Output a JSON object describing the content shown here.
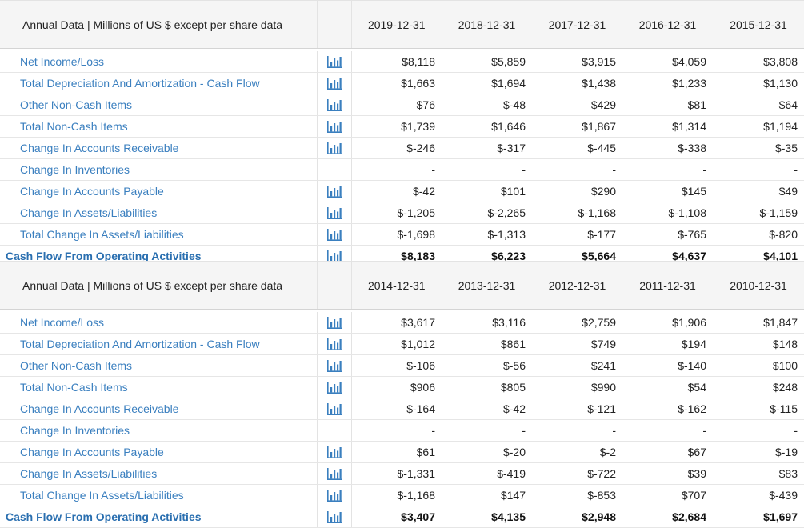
{
  "tables": [
    {
      "header_label": "Annual Data | Millions of US $ except per share data",
      "years": [
        "2019-12-31",
        "2018-12-31",
        "2017-12-31",
        "2016-12-31",
        "2015-12-31"
      ],
      "rows": [
        {
          "label": "Net Income/Loss",
          "chart": true,
          "values": [
            "$8,118",
            "$5,859",
            "$3,915",
            "$4,059",
            "$3,808"
          ]
        },
        {
          "label": "Total Depreciation And Amortization - Cash Flow",
          "chart": true,
          "values": [
            "$1,663",
            "$1,694",
            "$1,438",
            "$1,233",
            "$1,130"
          ]
        },
        {
          "label": "Other Non-Cash Items",
          "chart": true,
          "values": [
            "$76",
            "$-48",
            "$429",
            "$81",
            "$64"
          ]
        },
        {
          "label": "Total Non-Cash Items",
          "chart": true,
          "values": [
            "$1,739",
            "$1,646",
            "$1,867",
            "$1,314",
            "$1,194"
          ]
        },
        {
          "label": "Change In Accounts Receivable",
          "chart": true,
          "values": [
            "$-246",
            "$-317",
            "$-445",
            "$-338",
            "$-35"
          ]
        },
        {
          "label": "Change In Inventories",
          "chart": false,
          "values": [
            "-",
            "-",
            "-",
            "-",
            "-"
          ]
        },
        {
          "label": "Change In Accounts Payable",
          "chart": true,
          "values": [
            "$-42",
            "$101",
            "$290",
            "$145",
            "$49"
          ]
        },
        {
          "label": "Change In Assets/Liabilities",
          "chart": true,
          "values": [
            "$-1,205",
            "$-2,265",
            "$-1,168",
            "$-1,108",
            "$-1,159"
          ]
        },
        {
          "label": "Total Change In Assets/Liabilities",
          "chart": true,
          "values": [
            "$-1,698",
            "$-1,313",
            "$-177",
            "$-765",
            "$-820"
          ]
        },
        {
          "label": "Cash Flow From Operating Activities",
          "chart": true,
          "total": true,
          "values": [
            "$8,183",
            "$6,223",
            "$5,664",
            "$4,637",
            "$4,101"
          ]
        }
      ]
    },
    {
      "header_label": "Annual Data | Millions of US $ except per share data",
      "years": [
        "2014-12-31",
        "2013-12-31",
        "2012-12-31",
        "2011-12-31",
        "2010-12-31"
      ],
      "rows": [
        {
          "label": "Net Income/Loss",
          "chart": true,
          "values": [
            "$3,617",
            "$3,116",
            "$2,759",
            "$1,906",
            "$1,847"
          ]
        },
        {
          "label": "Total Depreciation And Amortization - Cash Flow",
          "chart": true,
          "values": [
            "$1,012",
            "$861",
            "$749",
            "$194",
            "$148"
          ]
        },
        {
          "label": "Other Non-Cash Items",
          "chart": true,
          "values": [
            "$-106",
            "$-56",
            "$241",
            "$-140",
            "$100"
          ]
        },
        {
          "label": "Total Non-Cash Items",
          "chart": true,
          "values": [
            "$906",
            "$805",
            "$990",
            "$54",
            "$248"
          ]
        },
        {
          "label": "Change In Accounts Receivable",
          "chart": true,
          "values": [
            "$-164",
            "$-42",
            "$-121",
            "$-162",
            "$-115"
          ]
        },
        {
          "label": "Change In Inventories",
          "chart": false,
          "values": [
            "-",
            "-",
            "-",
            "-",
            "-"
          ]
        },
        {
          "label": "Change In Accounts Payable",
          "chart": true,
          "values": [
            "$61",
            "$-20",
            "$-2",
            "$67",
            "$-19"
          ]
        },
        {
          "label": "Change In Assets/Liabilities",
          "chart": true,
          "values": [
            "$-1,331",
            "$-419",
            "$-722",
            "$39",
            "$83"
          ]
        },
        {
          "label": "Total Change In Assets/Liabilities",
          "chart": true,
          "values": [
            "$-1,168",
            "$147",
            "$-853",
            "$707",
            "$-439"
          ]
        },
        {
          "label": "Cash Flow From Operating Activities",
          "chart": true,
          "total": true,
          "values": [
            "$3,407",
            "$4,135",
            "$2,948",
            "$2,684",
            "$1,697"
          ]
        }
      ]
    }
  ],
  "icon": {
    "name": "bar-chart-icon",
    "color": "#3a7fbf"
  }
}
